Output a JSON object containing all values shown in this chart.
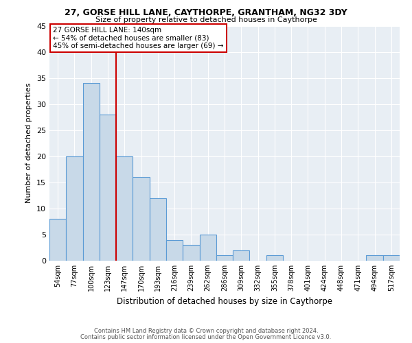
{
  "title1": "27, GORSE HILL LANE, CAYTHORPE, GRANTHAM, NG32 3DY",
  "title2": "Size of property relative to detached houses in Caythorpe",
  "xlabel": "Distribution of detached houses by size in Caythorpe",
  "ylabel": "Number of detached properties",
  "categories": [
    "54sqm",
    "77sqm",
    "100sqm",
    "123sqm",
    "147sqm",
    "170sqm",
    "193sqm",
    "216sqm",
    "239sqm",
    "262sqm",
    "286sqm",
    "309sqm",
    "332sqm",
    "355sqm",
    "378sqm",
    "401sqm",
    "424sqm",
    "448sqm",
    "471sqm",
    "494sqm",
    "517sqm"
  ],
  "values": [
    8,
    20,
    34,
    28,
    20,
    16,
    12,
    4,
    3,
    5,
    1,
    2,
    0,
    1,
    0,
    0,
    0,
    0,
    0,
    1,
    1
  ],
  "bar_color": "#c8d9e8",
  "bar_edge_color": "#5b9bd5",
  "property_line_color": "#cc0000",
  "annotation_text": "27 GORSE HILL LANE: 140sqm\n← 54% of detached houses are smaller (83)\n45% of semi-detached houses are larger (69) →",
  "annotation_box_color": "#ffffff",
  "annotation_box_edge": "#cc0000",
  "ylim": [
    0,
    45
  ],
  "yticks": [
    0,
    5,
    10,
    15,
    20,
    25,
    30,
    35,
    40,
    45
  ],
  "footer1": "Contains HM Land Registry data © Crown copyright and database right 2024.",
  "footer2": "Contains public sector information licensed under the Open Government Licence v3.0.",
  "bg_color": "#e8eef4"
}
